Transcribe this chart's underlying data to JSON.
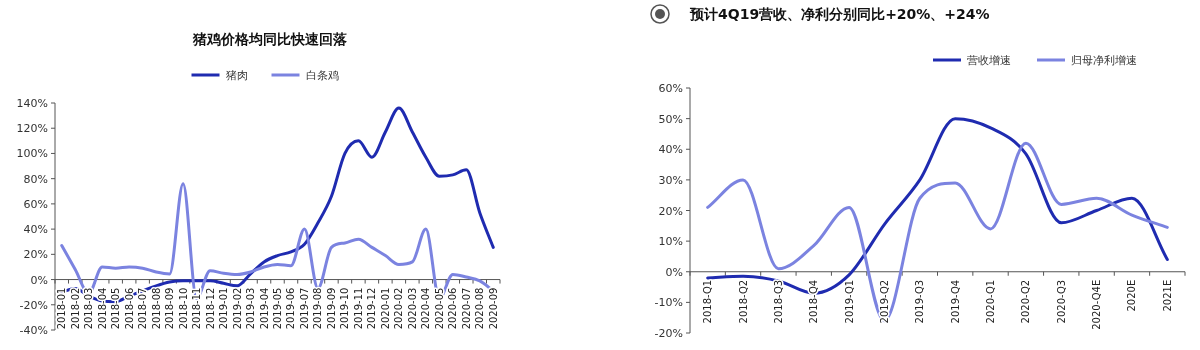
{
  "chart_data": [
    {
      "type": "line",
      "title": "猪鸡价格均同比快速回落",
      "legend": "top",
      "categories": [
        "2018-01",
        "2018-02",
        "2018-03",
        "2018-04",
        "2018-05",
        "2018-06",
        "2018-07",
        "2018-08",
        "2018-09",
        "2018-10",
        "2018-11",
        "2018-12",
        "2019-01",
        "2019-02",
        "2019-03",
        "2019-04",
        "2019-05",
        "2019-06",
        "2019-07",
        "2019-08",
        "2019-09",
        "2019-10",
        "2019-11",
        "2019-12",
        "2020-01",
        "2020-02",
        "2020-03",
        "2020-04",
        "2020-05",
        "2020-06",
        "2020-07",
        "2020-08",
        "2020-09"
      ],
      "series": [
        {
          "name": "猪肉",
          "color": "#1f2bb0",
          "values": [
            -10,
            -7,
            -13,
            -17,
            -17.5,
            -13,
            -9,
            -5,
            -2,
            -1,
            -1,
            -1,
            -3,
            -5,
            4.5,
            14,
            19,
            22,
            28,
            45,
            66,
            100,
            110,
            97,
            117,
            136,
            117,
            97,
            82,
            83,
            87,
            53,
            25.5
          ]
        },
        {
          "name": "白条鸡",
          "color": "#7b83e0",
          "values": [
            27,
            8,
            -11,
            10,
            9,
            10,
            9,
            6,
            4.5,
            76,
            -15,
            7,
            5,
            4,
            6,
            10,
            12,
            11,
            40,
            -7,
            25.5,
            29,
            32,
            25.5,
            19,
            12,
            14,
            40,
            -15,
            4,
            2,
            -1,
            -9
          ]
        }
      ],
      "ylim": [
        -40,
        140
      ],
      "yticks": [
        {
          "value": -40,
          "label": "-40%"
        },
        {
          "value": -20,
          "label": "-20%"
        },
        {
          "value": 0,
          "label": "0%"
        },
        {
          "value": 20,
          "label": "20%"
        },
        {
          "value": 40,
          "label": "40%"
        },
        {
          "value": 60,
          "label": "60%"
        },
        {
          "value": 80,
          "label": "80%"
        },
        {
          "value": 100,
          "label": "100%"
        },
        {
          "value": 120,
          "label": "120%"
        },
        {
          "value": 140,
          "label": "140%"
        }
      ]
    },
    {
      "type": "line",
      "title": "预计4Q19营收、净利分别同比+20%、+24%",
      "legend": "top right",
      "categories": [
        "2018-Q1",
        "2018-Q2",
        "2018-Q3",
        "2018-Q4",
        "2019-Q1",
        "2019-Q2",
        "2019-Q3",
        "2019-Q4",
        "2020-Q1",
        "2020-Q2",
        "2020-Q3",
        "2020-Q4E",
        "2020E",
        "2021E"
      ],
      "series": [
        {
          "name": "营收增速",
          "color": "#1f2bb0",
          "values": [
            -2,
            -1.5,
            -3,
            -7,
            -1,
            15.5,
            30,
            50,
            47,
            38.5,
            16,
            20,
            24,
            4
          ]
        },
        {
          "name": "归母净利增速",
          "color": "#7b83e0",
          "values": [
            21,
            30,
            1,
            8.5,
            21,
            -16,
            24,
            29,
            14,
            42,
            22,
            24,
            18.5,
            14.5
          ]
        }
      ],
      "ylim": [
        -20,
        60
      ],
      "yticks": [
        {
          "value": -20,
          "label": "-20%"
        },
        {
          "value": -10,
          "label": "-10%"
        },
        {
          "value": 0,
          "label": "0%"
        },
        {
          "value": 10,
          "label": "10%"
        },
        {
          "value": 20,
          "label": "20%"
        },
        {
          "value": 30,
          "label": "30%"
        },
        {
          "value": 40,
          "label": "40%"
        },
        {
          "value": 50,
          "label": "50%"
        },
        {
          "value": 60,
          "label": "60%"
        }
      ]
    }
  ]
}
